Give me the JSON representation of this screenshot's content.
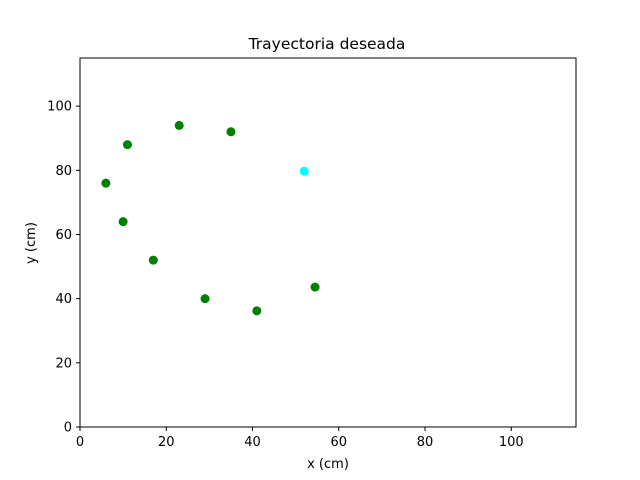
{
  "chart_data": {
    "type": "scatter",
    "title": "Trayectoria deseada",
    "xlabel": "x (cm)",
    "ylabel": "y (cm)",
    "xlim": [
      0,
      115
    ],
    "ylim": [
      0,
      115
    ],
    "xticks": [
      0,
      20,
      40,
      60,
      80,
      100
    ],
    "yticks": [
      0,
      20,
      40,
      60,
      80,
      100
    ],
    "grid": false,
    "series": [
      {
        "color": "#008000",
        "points": [
          {
            "x": 35,
            "y": 92
          },
          {
            "x": 23,
            "y": 94
          },
          {
            "x": 11,
            "y": 88
          },
          {
            "x": 6,
            "y": 76
          },
          {
            "x": 10,
            "y": 64
          },
          {
            "x": 17,
            "y": 52
          },
          {
            "x": 29,
            "y": 40
          },
          {
            "x": 41,
            "y": 36.2
          },
          {
            "x": 54.5,
            "y": 43.6
          }
        ]
      },
      {
        "color": "#00ffff",
        "points": [
          {
            "x": 52,
            "y": 79.7
          }
        ]
      }
    ]
  }
}
